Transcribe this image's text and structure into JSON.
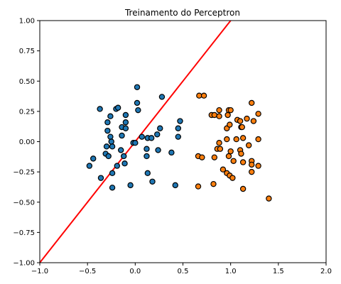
{
  "chart_data": {
    "type": "scatter",
    "title": "Treinamento do Perceptron",
    "xlabel": "",
    "ylabel": "",
    "xlim": [
      -1.0,
      2.0
    ],
    "ylim": [
      -1.0,
      1.0
    ],
    "xticks": [
      "−1.0",
      "−0.5",
      "0.0",
      "0.5",
      "1.0",
      "1.5",
      "2.0"
    ],
    "xtick_values": [
      -1.0,
      -0.5,
      0.0,
      0.5,
      1.0,
      1.5,
      2.0
    ],
    "yticks": [
      "1.00",
      "0.75",
      "0.50",
      "0.25",
      "0.00",
      "−0.25",
      "−0.50",
      "−0.75",
      "−1.00"
    ],
    "ytick_values": [
      1.0,
      0.75,
      0.5,
      0.25,
      0.0,
      -0.25,
      -0.5,
      -0.75,
      -1.0
    ],
    "grid": false,
    "colors": {
      "class_0": "#1f77b4",
      "class_1": "#ff7f0e",
      "line": "#ff0000"
    },
    "series": [
      {
        "points": [
          [
            0.02,
            0.45
          ],
          [
            0.28,
            0.37
          ],
          [
            0.02,
            0.32
          ],
          [
            -0.37,
            0.27
          ],
          [
            -0.2,
            0.27
          ],
          [
            -0.26,
            0.21
          ],
          [
            -0.1,
            0.22
          ],
          [
            0.03,
            0.26
          ],
          [
            -0.18,
            0.28
          ],
          [
            -0.29,
            0.16
          ],
          [
            -0.1,
            0.16
          ],
          [
            -0.14,
            0.12
          ],
          [
            -0.29,
            0.09
          ],
          [
            -0.1,
            0.11
          ],
          [
            -0.26,
            0.04
          ],
          [
            -0.14,
            0.05
          ],
          [
            0.26,
            0.11
          ],
          [
            0.47,
            0.17
          ],
          [
            0.45,
            0.11
          ],
          [
            0.07,
            0.04
          ],
          [
            0.13,
            0.03
          ],
          [
            0.17,
            0.03
          ],
          [
            0.23,
            0.06
          ],
          [
            0.45,
            0.04
          ],
          [
            -0.25,
            0.0
          ],
          [
            -0.02,
            -0.01
          ],
          [
            0.0,
            -0.01
          ],
          [
            -0.3,
            -0.04
          ],
          [
            -0.24,
            -0.04
          ],
          [
            -0.15,
            -0.07
          ],
          [
            0.12,
            -0.06
          ],
          [
            0.24,
            -0.07
          ],
          [
            0.38,
            -0.09
          ],
          [
            -0.31,
            -0.1
          ],
          [
            -0.28,
            -0.12
          ],
          [
            -0.44,
            -0.14
          ],
          [
            -0.12,
            -0.12
          ],
          [
            0.12,
            -0.12
          ],
          [
            -0.48,
            -0.2
          ],
          [
            -0.19,
            -0.2
          ],
          [
            -0.11,
            -0.18
          ],
          [
            -0.24,
            -0.26
          ],
          [
            0.13,
            -0.26
          ],
          [
            -0.36,
            -0.3
          ],
          [
            0.18,
            -0.33
          ],
          [
            -0.05,
            -0.36
          ],
          [
            -0.24,
            -0.38
          ],
          [
            0.42,
            -0.36
          ]
        ]
      },
      {
        "points": [
          [
            0.67,
            0.38
          ],
          [
            0.72,
            0.38
          ],
          [
            1.22,
            0.32
          ],
          [
            0.8,
            0.22
          ],
          [
            0.83,
            0.22
          ],
          [
            0.88,
            0.26
          ],
          [
            0.88,
            0.21
          ],
          [
            0.97,
            0.22
          ],
          [
            0.98,
            0.26
          ],
          [
            1.0,
            0.26
          ],
          [
            1.07,
            0.18
          ],
          [
            1.1,
            0.17
          ],
          [
            1.17,
            0.19
          ],
          [
            1.24,
            0.17
          ],
          [
            1.29,
            0.23
          ],
          [
            0.96,
            0.11
          ],
          [
            0.99,
            0.14
          ],
          [
            1.11,
            0.12
          ],
          [
            1.12,
            0.12
          ],
          [
            0.96,
            0.02
          ],
          [
            1.06,
            0.02
          ],
          [
            1.13,
            0.03
          ],
          [
            1.29,
            0.02
          ],
          [
            0.88,
            -0.01
          ],
          [
            1.19,
            -0.03
          ],
          [
            0.86,
            -0.06
          ],
          [
            0.89,
            -0.06
          ],
          [
            1.0,
            -0.08
          ],
          [
            1.1,
            -0.07
          ],
          [
            1.11,
            -0.1
          ],
          [
            0.66,
            -0.12
          ],
          [
            0.7,
            -0.13
          ],
          [
            0.83,
            -0.13
          ],
          [
            0.98,
            -0.12
          ],
          [
            1.03,
            -0.16
          ],
          [
            1.13,
            -0.17
          ],
          [
            1.22,
            -0.16
          ],
          [
            1.22,
            -0.19
          ],
          [
            1.29,
            -0.2
          ],
          [
            0.92,
            -0.23
          ],
          [
            0.96,
            -0.26
          ],
          [
            0.99,
            -0.28
          ],
          [
            1.02,
            -0.3
          ],
          [
            1.22,
            -0.25
          ],
          [
            0.66,
            -0.37
          ],
          [
            0.82,
            -0.35
          ],
          [
            1.13,
            -0.39
          ],
          [
            1.4,
            -0.47
          ]
        ]
      }
    ],
    "decision_line": {
      "x": [
        -1.0,
        1.0
      ],
      "y": [
        -1.0,
        1.0
      ]
    }
  }
}
